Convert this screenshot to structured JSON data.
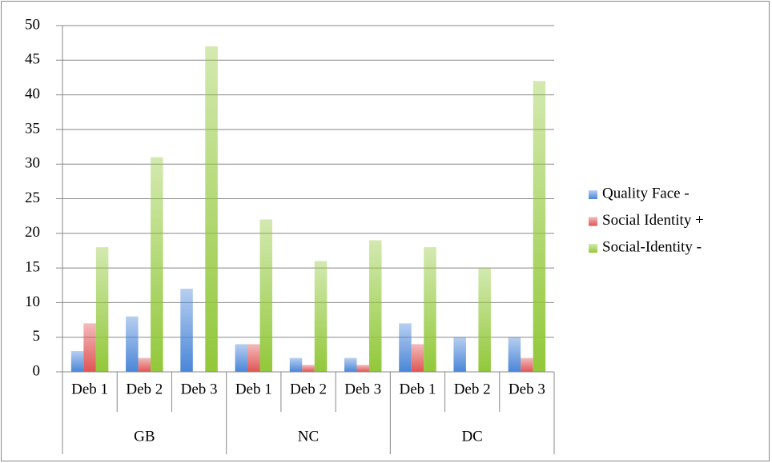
{
  "chart_data": {
    "type": "bar",
    "groups": [
      {
        "name": "GB",
        "categories": [
          "Deb 1",
          "Deb 2",
          "Deb 3"
        ]
      },
      {
        "name": "NC",
        "categories": [
          "Deb 1",
          "Deb 2",
          "Deb 3"
        ]
      },
      {
        "name": "DC",
        "categories": [
          "Deb 1",
          "Deb 2",
          "Deb 3"
        ]
      }
    ],
    "series": [
      {
        "name": "Quality Face -",
        "color": "#4a86d8",
        "values": [
          3,
          8,
          12,
          4,
          2,
          2,
          7,
          5,
          5
        ]
      },
      {
        "name": "Social Identity +",
        "color": "#e05555",
        "values": [
          7,
          2,
          0,
          4,
          1,
          1,
          4,
          0,
          2
        ]
      },
      {
        "name": "Social-Identity -",
        "color": "#92c83a",
        "values": [
          18,
          31,
          47,
          22,
          16,
          19,
          18,
          15,
          42
        ]
      }
    ],
    "ylim": [
      0,
      50
    ],
    "yticks": [
      0,
      5,
      10,
      15,
      20,
      25,
      30,
      35,
      40,
      45,
      50
    ],
    "grid": true,
    "legend": "right"
  }
}
